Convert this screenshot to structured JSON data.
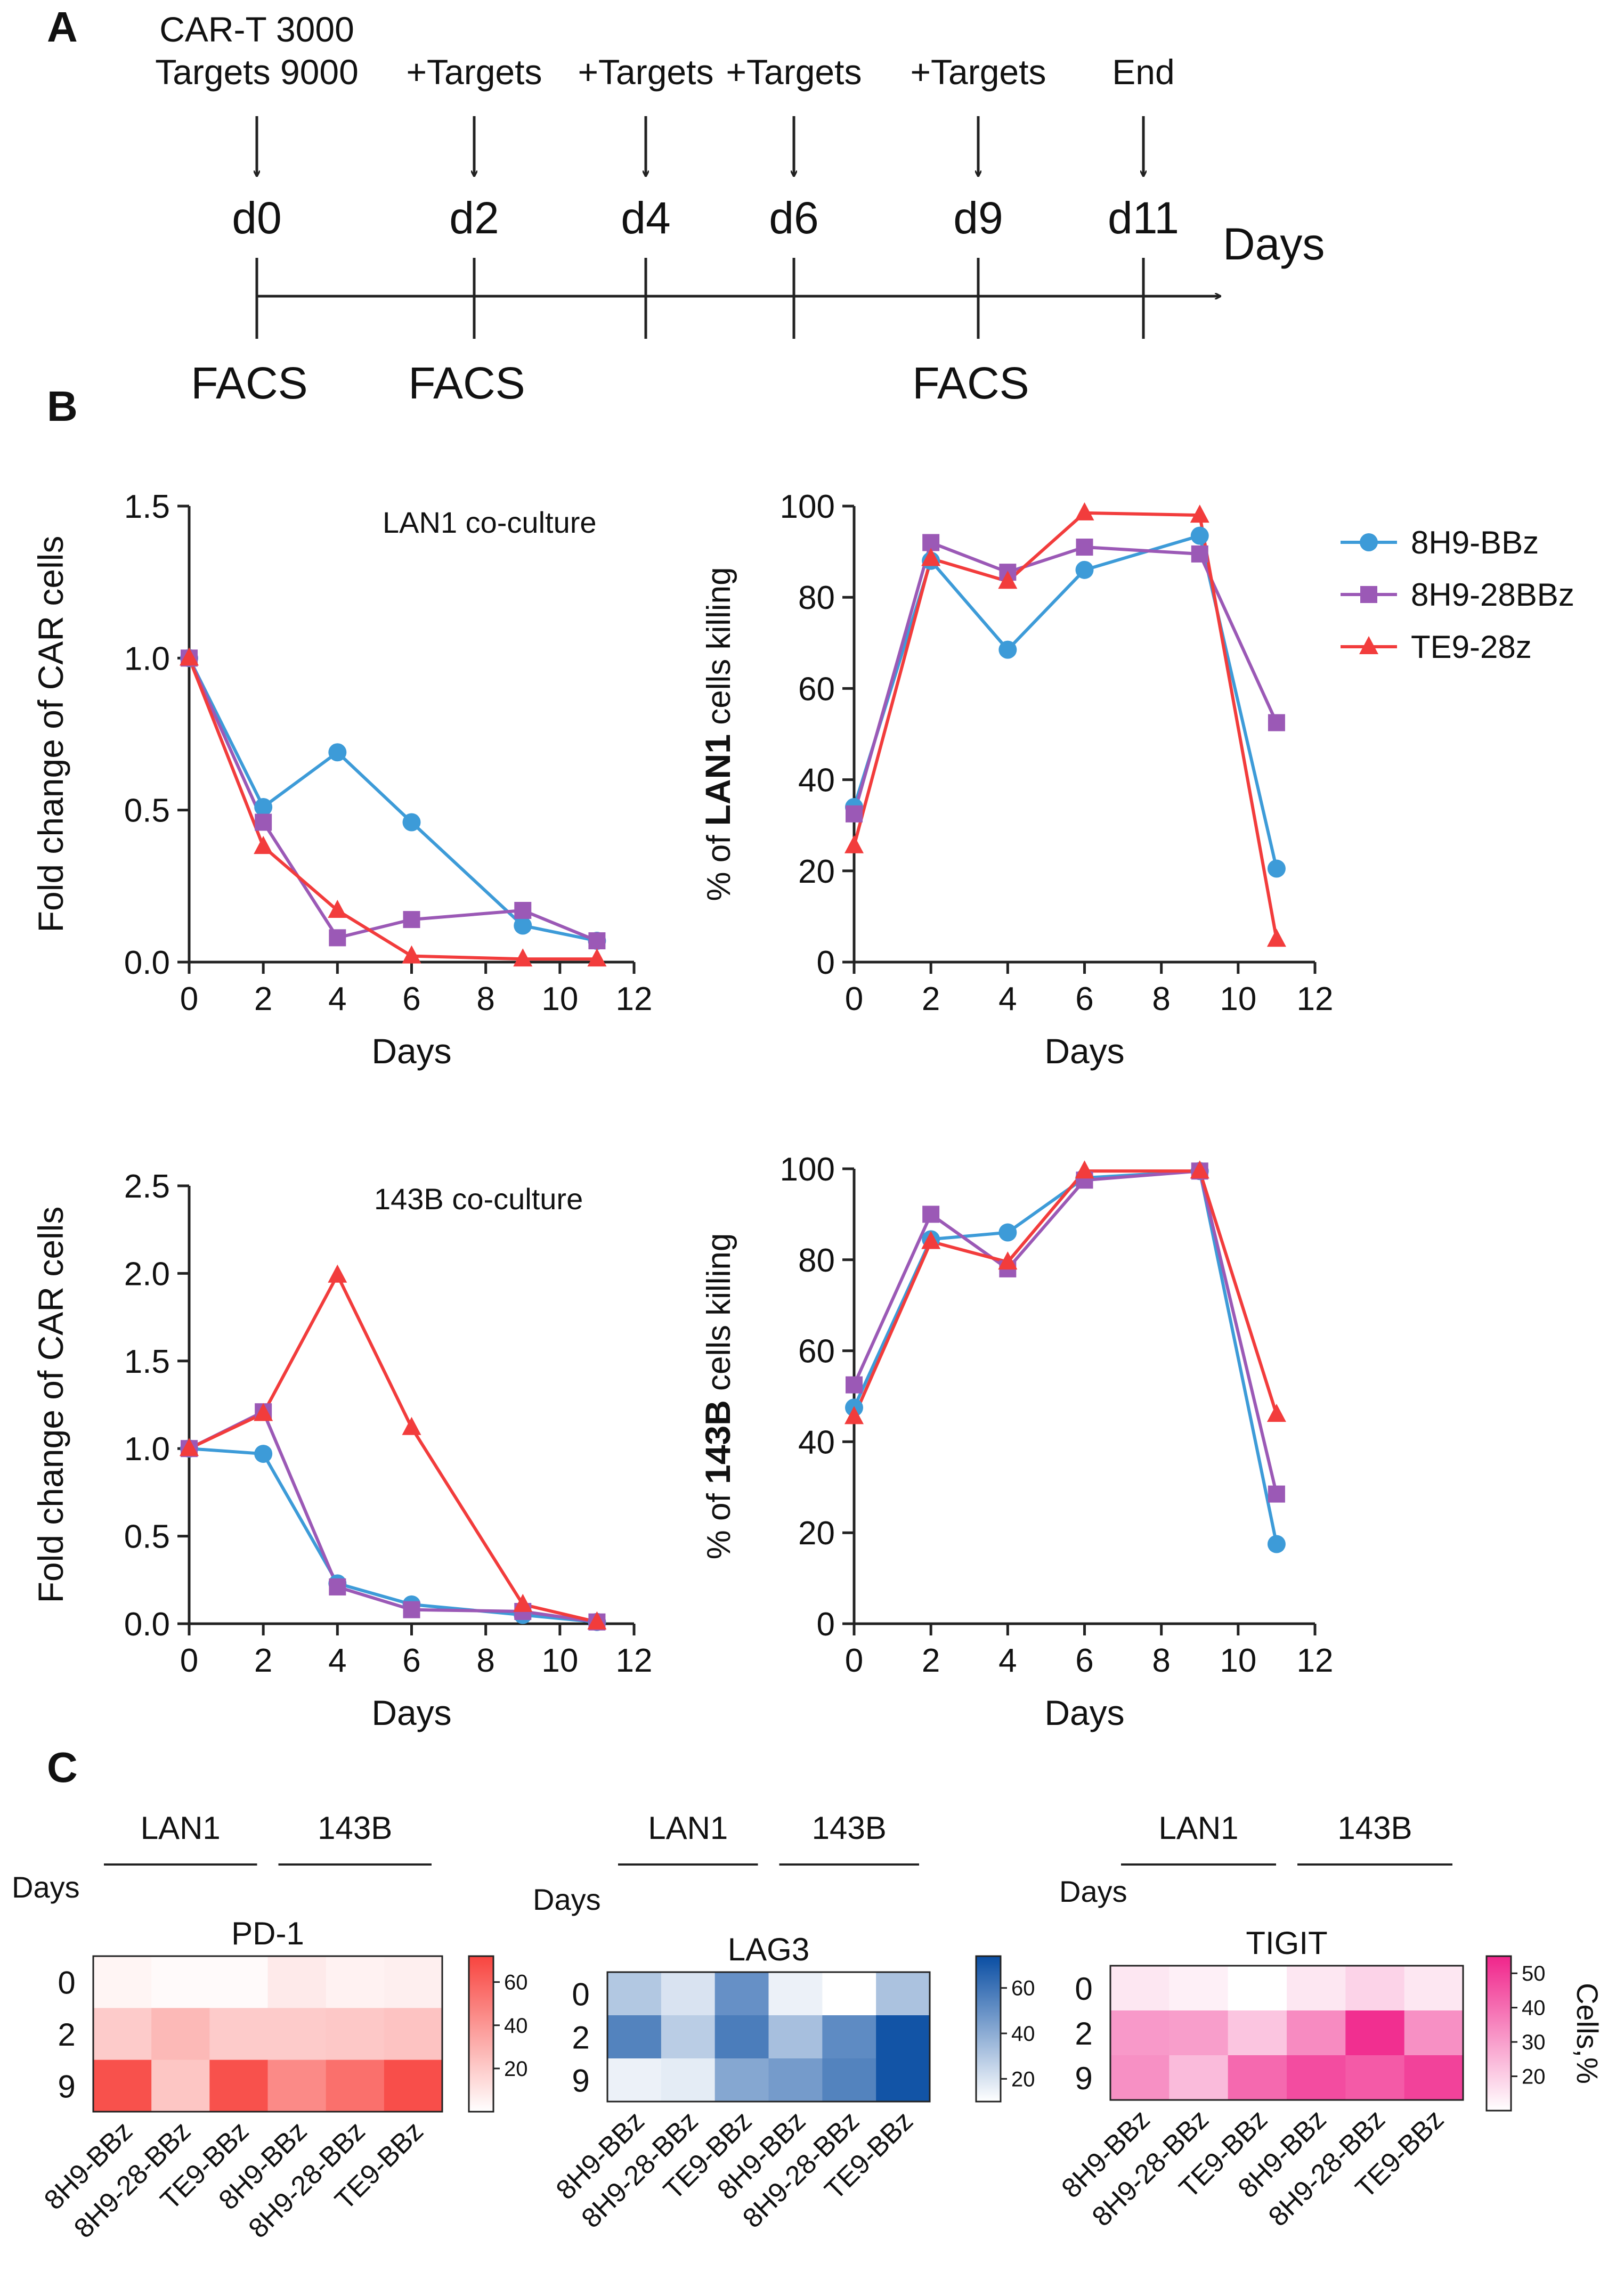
{
  "colors": {
    "bbz": "#3d9bd8",
    "bbz28": "#9b59b6",
    "te9": "#f23c3c",
    "axis": "#222222",
    "pd1_hi": "#f8443f",
    "lag3_hi": "#0a4ea3",
    "tigit_hi": "#f0258b"
  },
  "panel_a": {
    "label": "A",
    "days_label": "Days",
    "facs_label": "FACS",
    "timepoints": [
      {
        "day": 0,
        "tick": "d0",
        "top": [
          "CAR-T 3000",
          "Targets 9000"
        ],
        "facs": true
      },
      {
        "day": 2,
        "tick": "d2",
        "top": [
          "+Targets"
        ],
        "facs": true
      },
      {
        "day": 4,
        "tick": "d4",
        "top": [
          "+Targets"
        ],
        "facs": false
      },
      {
        "day": 6,
        "tick": "d6",
        "top": [
          "+Targets"
        ],
        "facs": false
      },
      {
        "day": 9,
        "tick": "d9",
        "top": [
          "+Targets"
        ],
        "facs": true
      },
      {
        "day": 11,
        "tick": "d11",
        "top": [
          "End"
        ],
        "facs": false
      }
    ]
  },
  "panel_b_label": "B",
  "panel_c_label": "C",
  "legend": [
    "8H9-BBz",
    "8H9-28BBz",
    "TE9-28z"
  ],
  "chart_data": [
    {
      "id": "lan1_fold",
      "type": "line",
      "annotation": "LAN1 co-culture",
      "xlabel": "Days",
      "ylabel": "Fold change  of CAR cells",
      "xlim": [
        0,
        12
      ],
      "ylim": [
        0,
        1.5
      ],
      "xticks": [
        0,
        2,
        4,
        6,
        8,
        10,
        12
      ],
      "yticks": [
        0.0,
        0.5,
        1.0,
        1.5
      ],
      "ytick_labels": [
        "0.0",
        "0.5",
        "1.0",
        "1.5"
      ],
      "x": [
        0,
        2,
        4,
        6,
        9,
        11
      ],
      "series": [
        {
          "name": "8H9-BBz",
          "marker": "circle",
          "values": [
            1.0,
            0.51,
            0.69,
            0.46,
            0.12,
            0.07
          ]
        },
        {
          "name": "8H9-28BBz",
          "marker": "square",
          "values": [
            1.0,
            0.46,
            0.08,
            0.14,
            0.17,
            0.07
          ]
        },
        {
          "name": "TE9-28z",
          "marker": "triangle",
          "values": [
            1.0,
            0.38,
            0.17,
            0.02,
            0.01,
            0.01
          ]
        }
      ]
    },
    {
      "id": "lan1_kill",
      "type": "line",
      "annotation": "",
      "xlabel": "Days",
      "ylabel_parts": [
        "% of ",
        "LAN1",
        " cells killing"
      ],
      "xlim": [
        0,
        12
      ],
      "ylim": [
        0,
        100
      ],
      "xticks": [
        0,
        2,
        4,
        6,
        8,
        10,
        12
      ],
      "yticks": [
        0,
        20,
        40,
        60,
        80,
        100
      ],
      "ytick_labels": [
        "0",
        "20",
        "40",
        "60",
        "80",
        "100"
      ],
      "x": [
        0,
        2,
        4,
        6,
        9,
        11
      ],
      "series": [
        {
          "name": "8H9-BBz",
          "marker": "circle",
          "values": [
            34,
            88,
            68.5,
            86,
            93.5,
            20.5
          ]
        },
        {
          "name": "8H9-28BBz",
          "marker": "square",
          "values": [
            32.5,
            92,
            85.5,
            91,
            89.5,
            52.5
          ]
        },
        {
          "name": "TE9-28z",
          "marker": "triangle",
          "values": [
            25.5,
            88.5,
            83.5,
            98.5,
            98,
            5
          ]
        }
      ]
    },
    {
      "id": "b143_fold",
      "type": "line",
      "annotation": "143B co-culture",
      "xlabel": "Days",
      "ylabel": "Fold change  of CAR cells",
      "xlim": [
        0,
        12
      ],
      "ylim": [
        0,
        2.5
      ],
      "xticks": [
        0,
        2,
        4,
        6,
        8,
        10,
        12
      ],
      "yticks": [
        0.0,
        0.5,
        1.0,
        1.5,
        2.0,
        2.5
      ],
      "ytick_labels": [
        "0.0",
        "0.5",
        "1.0",
        "1.5",
        "2.0",
        "2.5"
      ],
      "x": [
        0,
        2,
        4,
        6,
        9,
        11
      ],
      "series": [
        {
          "name": "8H9-BBz",
          "marker": "circle",
          "values": [
            1.0,
            0.97,
            0.23,
            0.11,
            0.05,
            0.01
          ]
        },
        {
          "name": "8H9-28BBz",
          "marker": "square",
          "values": [
            1.0,
            1.21,
            0.21,
            0.08,
            0.07,
            0.01
          ]
        },
        {
          "name": "TE9-28z",
          "marker": "triangle",
          "values": [
            1.0,
            1.2,
            1.99,
            1.12,
            0.11,
            0.01
          ]
        }
      ]
    },
    {
      "id": "b143_kill",
      "type": "line",
      "annotation": "",
      "xlabel": "Days",
      "ylabel_parts": [
        "% of ",
        "143B",
        " cells killing"
      ],
      "xlim": [
        0,
        12
      ],
      "ylim": [
        0,
        100
      ],
      "xticks": [
        0,
        2,
        4,
        6,
        8,
        10,
        12
      ],
      "yticks": [
        0,
        20,
        40,
        60,
        80,
        100
      ],
      "ytick_labels": [
        "0",
        "20",
        "40",
        "60",
        "80",
        "100"
      ],
      "x": [
        0,
        2,
        4,
        6,
        9,
        11
      ],
      "series": [
        {
          "name": "8H9-BBz",
          "marker": "circle",
          "values": [
            47.5,
            84.5,
            86,
            98,
            99.5,
            17.5
          ]
        },
        {
          "name": "8H9-28BBz",
          "marker": "square",
          "values": [
            52.5,
            90,
            78,
            97.5,
            99.5,
            28.5
          ]
        },
        {
          "name": "TE9-28z",
          "marker": "triangle",
          "values": [
            45.5,
            84,
            79.5,
            99.5,
            99.5,
            46
          ]
        }
      ]
    },
    {
      "id": "pd1",
      "type": "heatmap",
      "title": "PD-1",
      "days_label": "Days",
      "rows": [
        "0",
        "2",
        "9"
      ],
      "columns": [
        "8H9-BBz",
        "8H9-28-BBz",
        "TE9-BBz",
        "8H9-BBz",
        "8H9-28-BBz",
        "TE9-BBz"
      ],
      "groups": [
        "LAN1",
        "143B"
      ],
      "values": [
        [
          4,
          2,
          2,
          8,
          5,
          6
        ],
        [
          20,
          27,
          20,
          20,
          21,
          23
        ],
        [
          67,
          22,
          67,
          45,
          55,
          68
        ]
      ],
      "vmin": 0,
      "vmax": 72,
      "colorbar_ticks": [
        20,
        40,
        60
      ],
      "color_low": "#ffffff",
      "color_high": "#f8443f"
    },
    {
      "id": "lag3",
      "type": "heatmap",
      "title": "LAG3",
      "days_label": "Days",
      "rows": [
        "0",
        "2",
        "9"
      ],
      "columns": [
        "8H9-BBz",
        "8H9-28-BBz",
        "TE9-BBz",
        "8H9-BBz",
        "8H9-28-BBz",
        "TE9-BBz"
      ],
      "groups": [
        "LAN1",
        "143B"
      ],
      "values": [
        [
          30,
          20,
          50,
          15,
          10,
          32
        ],
        [
          55,
          28,
          57,
          33,
          52,
          72
        ],
        [
          15,
          17,
          42,
          46,
          55,
          72
        ]
      ],
      "vmin": 10,
      "vmax": 74,
      "colorbar_ticks": [
        20,
        40,
        60
      ],
      "color_low": "#ffffff",
      "color_high": "#0a4ea3"
    },
    {
      "id": "tigit",
      "type": "heatmap",
      "title": "TIGIT",
      "days_label": "Days",
      "rows": [
        "0",
        "2",
        "9"
      ],
      "columns": [
        "8H9-BBz",
        "8H9-28-BBz",
        "TE9-BBz",
        "8H9-BBz",
        "8H9-28-BBz",
        "TE9-BBz"
      ],
      "groups": [
        "LAN1",
        "143B"
      ],
      "values": [
        [
          15,
          13,
          10,
          15,
          19,
          15
        ],
        [
          31,
          30,
          22,
          34,
          53,
          33
        ],
        [
          33,
          24,
          41,
          47,
          44,
          49
        ]
      ],
      "vmin": 10,
      "vmax": 55,
      "colorbar_ticks": [
        20,
        30,
        40,
        50
      ],
      "colorbar_label": "Cells,%",
      "color_low": "#ffffff",
      "color_high": "#f0258b"
    }
  ]
}
